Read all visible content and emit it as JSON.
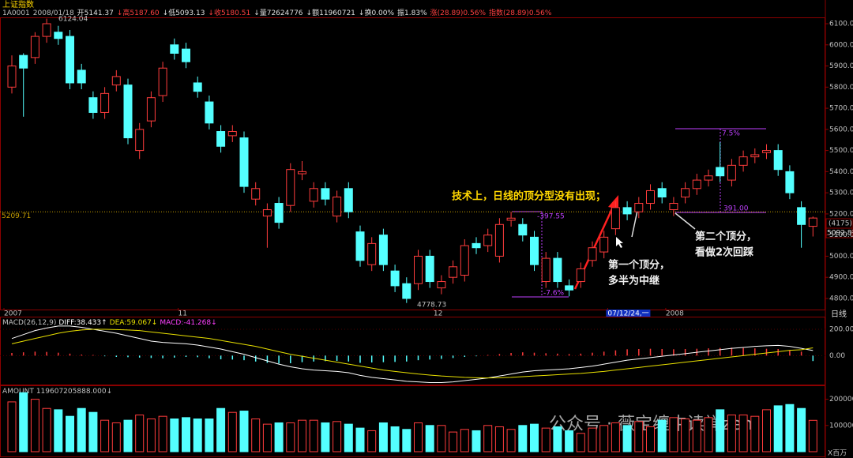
{
  "header": {
    "title": "上证指数",
    "info": [
      {
        "text": "1A0001",
        "color": "#c0c0c0"
      },
      {
        "text": "2008/01/18",
        "color": "#c0c0c0"
      },
      {
        "text": "开5141.37",
        "color": "#e0e0e0"
      },
      {
        "text": "↓高5187.60",
        "color": "#ff4040"
      },
      {
        "text": "↓低5093.13",
        "color": "#e0e0e0"
      },
      {
        "text": "↓收5180.51",
        "color": "#ff4040"
      },
      {
        "text": "↓量72624776",
        "color": "#e0e0e0"
      },
      {
        "text": "↓额11960721",
        "color": "#e0e0e0"
      },
      {
        "text": "↓换0.00%",
        "color": "#e0e0e0"
      },
      {
        "text": "振1.83%",
        "color": "#e0e0e0"
      },
      {
        "text": "涨(28.89)0.56%",
        "color": "#ff4040"
      },
      {
        "text": "指数(28.89)0.56%",
        "color": "#ff4040"
      }
    ]
  },
  "watermark": "公众号 · 薇宝缠中读禅zen",
  "chart_data": [
    {
      "type": "candlestick",
      "up_color": "#ff3c3c",
      "down_color": "#54ffff",
      "ylim": [
        4755,
        6130
      ],
      "yticks": [
        {
          "value": 4800,
          "label": "4800.00"
        },
        {
          "value": 4900,
          "label": "4900.00"
        },
        {
          "value": 5000,
          "label": "5000.00"
        },
        {
          "value": 5100,
          "label": "5100.00"
        },
        {
          "value": 5200,
          "label": "5200.00"
        },
        {
          "value": 5300,
          "label": "5300.00"
        },
        {
          "value": 5400,
          "label": "5400.00"
        },
        {
          "value": 5500,
          "label": "5500.00"
        },
        {
          "value": 5600,
          "label": "5600.00"
        },
        {
          "value": 5700,
          "label": "5700.00"
        },
        {
          "value": 5800,
          "label": "5800.00"
        },
        {
          "value": 5900,
          "label": "5900.00"
        },
        {
          "value": 6000,
          "label": "6000.00"
        },
        {
          "value": 6100,
          "label": "6100.00"
        }
      ],
      "xticks": [
        {
          "value": 0,
          "label": "2007"
        },
        {
          "value": 15,
          "label": "11"
        },
        {
          "value": 37,
          "label": "12"
        },
        {
          "value": 52,
          "label": "07/12/24,一"
        },
        {
          "value": 57,
          "label": "2008"
        }
      ],
      "period_label": "日线",
      "ref_line": 5209.71,
      "right_labels": [
        "(4175)",
        "5092.87"
      ],
      "annotations": [
        "技术上，日线的顶分型没有出现；",
        "第一个顶分，",
        "多半为中继",
        "第二个顶分，",
        "看做2次回踩",
        "-397.55",
        "-7.6%",
        "7.5%",
        "391.00"
      ],
      "open": [
        5800,
        5950,
        5940,
        6040,
        6060,
        6040,
        5880,
        5750,
        5680,
        5810,
        5810,
        5500,
        5640,
        5760,
        6000,
        5980,
        5820,
        5730,
        5590,
        5570,
        5560,
        5270,
        5190,
        5250,
        5240,
        5390,
        5260,
        5320,
        5190,
        5320,
        5115,
        4960,
        5100,
        4930,
        4870,
        4870,
        5000,
        4850,
        4900,
        4910,
        5060,
        5050,
        5000,
        5170,
        5150,
        5090,
        4880,
        4990,
        4860,
        4880,
        4980,
        5020,
        5130,
        5230,
        5210,
        5250,
        5320,
        5220,
        5280,
        5320,
        5360,
        5420,
        5360,
        5430,
        5470,
        5490,
        5500,
        5400,
        5230,
        5141.37
      ],
      "high": [
        5950,
        5960,
        6060,
        6124.04,
        6090,
        6070,
        5910,
        5780,
        5800,
        5880,
        5840,
        5630,
        5780,
        5920,
        6030,
        6010,
        5850,
        5760,
        5620,
        5620,
        5590,
        5350,
        5250,
        5280,
        5440,
        5450,
        5350,
        5350,
        5310,
        5350,
        5145,
        5090,
        5130,
        4960,
        4900,
        5030,
        5030,
        4910,
        4980,
        5080,
        5090,
        5130,
        5180,
        5210,
        5180,
        5120,
        5020,
        5020,
        4890,
        4970,
        5070,
        5120,
        5260,
        5260,
        5280,
        5340,
        5350,
        5280,
        5350,
        5390,
        5410,
        5540,
        5460,
        5500,
        5510,
        5530,
        5530,
        5430,
        5260,
        5187.6
      ],
      "low": [
        5770,
        5660,
        5910,
        6010,
        6000,
        5790,
        5790,
        5650,
        5650,
        5780,
        5530,
        5460,
        5610,
        5730,
        5930,
        5890,
        5750,
        5600,
        5490,
        5540,
        5300,
        5240,
        5040,
        5130,
        5210,
        5360,
        5230,
        5240,
        5160,
        5180,
        4950,
        4930,
        4930,
        4830,
        4778.73,
        4840,
        4850,
        4820,
        4870,
        4880,
        5010,
        5020,
        4970,
        5140,
        5070,
        4930,
        4850,
        4850,
        4810,
        4850,
        4950,
        4990,
        5100,
        5170,
        5180,
        5220,
        5250,
        5190,
        5250,
        5290,
        5330,
        5350,
        5330,
        5400,
        5440,
        5460,
        5380,
        5270,
        5040,
        5093.13
      ],
      "close": [
        5900,
        5890,
        6040,
        6100,
        6030,
        5820,
        5820,
        5680,
        5770,
        5850,
        5560,
        5600,
        5750,
        5890,
        5960,
        5920,
        5780,
        5630,
        5520,
        5590,
        5330,
        5320,
        5220,
        5160,
        5410,
        5400,
        5320,
        5270,
        5280,
        5210,
        4980,
        5060,
        4960,
        4860,
        4800,
        5000,
        4880,
        4880,
        4950,
        5050,
        5040,
        5100,
        5150,
        5180,
        5100,
        4960,
        4990,
        4880,
        4840,
        4940,
        5040,
        5090,
        5230,
        5200,
        5250,
        5310,
        5280,
        5250,
        5320,
        5360,
        5380,
        5380,
        5430,
        5470,
        5480,
        5500,
        5410,
        5300,
        5150,
        5180.51
      ]
    },
    {
      "type": "macd",
      "title": "MACD(26,12,9)",
      "title_parts": [
        "DIFF:38.433↑",
        "DEA:59.067↓",
        "MACD:-41.268↓"
      ],
      "ylim": [
        -220,
        290
      ],
      "yticks": [
        {
          "value": 200,
          "label": "200.00"
        },
        {
          "value": 0,
          "label": "0.00"
        }
      ],
      "up_color": "#ff3c3c",
      "down_color": "#54ffff",
      "histogram": [
        20,
        25,
        30,
        28,
        22,
        15,
        8,
        5,
        -5,
        -10,
        -12,
        -15,
        -18,
        -20,
        -15,
        -10,
        -12,
        -20,
        -28,
        -30,
        -35,
        -45,
        -55,
        -60,
        -58,
        -50,
        -45,
        -42,
        -40,
        -45,
        -55,
        -52,
        -50,
        -48,
        -45,
        -35,
        -30,
        -25,
        -18,
        -10,
        -5,
        5,
        12,
        20,
        25,
        22,
        18,
        15,
        12,
        15,
        22,
        30,
        40,
        48,
        50,
        52,
        50,
        48,
        50,
        52,
        55,
        58,
        60,
        58,
        55,
        52,
        50,
        40,
        30,
        -41.268
      ],
      "series": [
        {
          "name": "DIFF",
          "color": "#ffffff",
          "values": [
            130,
            160,
            190,
            210,
            225,
            225,
            215,
            200,
            185,
            170,
            150,
            130,
            110,
            100,
            95,
            90,
            80,
            65,
            50,
            30,
            10,
            -15,
            -40,
            -65,
            -85,
            -100,
            -110,
            -115,
            -120,
            -130,
            -150,
            -165,
            -175,
            -185,
            -195,
            -200,
            -205,
            -205,
            -200,
            -190,
            -180,
            -170,
            -155,
            -140,
            -125,
            -115,
            -110,
            -105,
            -100,
            -90,
            -80,
            -65,
            -50,
            -35,
            -25,
            -15,
            -5,
            5,
            15,
            25,
            35,
            45,
            55,
            62,
            70,
            75,
            78,
            70,
            55,
            38.433
          ]
        },
        {
          "name": "DEA",
          "color": "#e8e000",
          "values": [
            90,
            110,
            130,
            150,
            170,
            185,
            195,
            200,
            200,
            198,
            195,
            190,
            180,
            170,
            160,
            150,
            140,
            130,
            115,
            100,
            85,
            70,
            50,
            30,
            10,
            -5,
            -20,
            -35,
            -50,
            -65,
            -80,
            -95,
            -110,
            -120,
            -130,
            -140,
            -148,
            -155,
            -160,
            -165,
            -168,
            -170,
            -168,
            -165,
            -160,
            -155,
            -150,
            -145,
            -140,
            -135,
            -128,
            -120,
            -110,
            -100,
            -90,
            -80,
            -70,
            -60,
            -50,
            -40,
            -30,
            -20,
            -10,
            0,
            10,
            20,
            30,
            40,
            45,
            59.067
          ]
        }
      ]
    },
    {
      "type": "bar",
      "title": "AMOUNT",
      "title_value": "119607205888.000↓",
      "unit_label": "X百万",
      "ylim": [
        0,
        250000
      ],
      "yticks": [
        100000,
        200000
      ],
      "values": [
        190000,
        225000,
        200000,
        165000,
        160000,
        135000,
        165000,
        150000,
        120000,
        110000,
        120000,
        140000,
        125000,
        135000,
        125000,
        130000,
        125000,
        125000,
        165000,
        150000,
        155000,
        125000,
        105000,
        110000,
        110000,
        120000,
        120000,
        110000,
        115000,
        105000,
        90000,
        80000,
        110000,
        95000,
        85000,
        110000,
        100000,
        100000,
        75000,
        85000,
        80000,
        100000,
        95000,
        85000,
        100000,
        105000,
        90000,
        95000,
        80000,
        70000,
        90000,
        100000,
        110000,
        100000,
        115000,
        95000,
        120000,
        130000,
        125000,
        120000,
        130000,
        160000,
        140000,
        140000,
        135000,
        160000,
        175000,
        180000,
        165000,
        119607
      ]
    }
  ]
}
